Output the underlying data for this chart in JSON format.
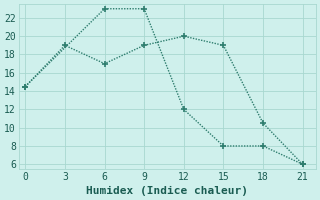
{
  "line1_x": [
    0,
    6,
    9,
    12,
    15,
    18,
    21
  ],
  "line1_y": [
    14.5,
    23,
    23,
    12,
    8,
    8,
    6
  ],
  "line2_x": [
    0,
    3,
    6,
    9,
    12,
    15,
    18,
    21
  ],
  "line2_y": [
    14.5,
    19,
    17,
    19,
    20,
    19,
    10.5,
    6
  ],
  "line_color": "#2e7d6e",
  "bg_color": "#cff0ec",
  "grid_color": "#a8d8d0",
  "xlabel": "Humidex (Indice chaleur)",
  "xlim": [
    -0.5,
    22
  ],
  "ylim": [
    5.5,
    23.5
  ],
  "xticks": [
    0,
    3,
    6,
    9,
    12,
    15,
    18,
    21
  ],
  "yticks": [
    6,
    8,
    10,
    12,
    14,
    16,
    18,
    20,
    22
  ],
  "font_color": "#1a5c52",
  "tick_font_size": 7,
  "label_font_size": 8
}
